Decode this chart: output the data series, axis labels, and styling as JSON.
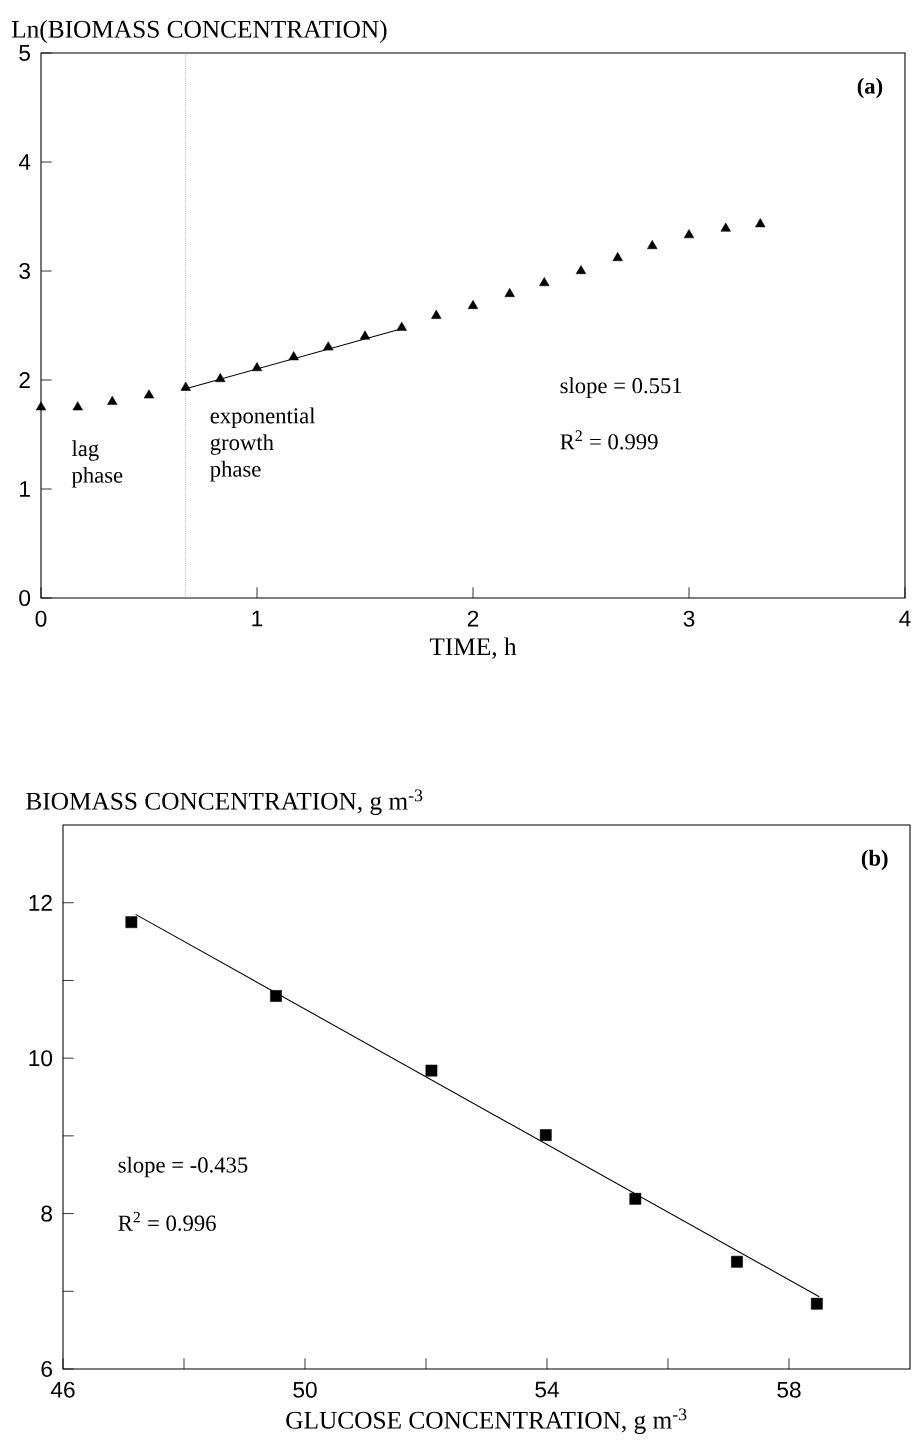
{
  "chart_data": [
    {
      "type": "scatter",
      "xlabel": "TIME, h",
      "ylabel": "Ln(BIOMASS CONCENTRATION)",
      "xlim": [
        0,
        4
      ],
      "ylim": [
        0,
        5
      ],
      "xticks": [
        0,
        1,
        2,
        3,
        4
      ],
      "yticks": [
        0,
        1,
        2,
        3,
        4,
        5
      ],
      "marker": "triangle",
      "series": [
        {
          "color": "#000000",
          "x": [
            0,
            0.17,
            0.33,
            0.5,
            0.67,
            0.83,
            1.0,
            1.17,
            1.33,
            1.5,
            1.67,
            1.83,
            2.0,
            2.17,
            2.33,
            2.5,
            2.67,
            2.83,
            3.0,
            3.17,
            3.33
          ],
          "values": [
            1.75,
            1.75,
            1.8,
            1.86,
            1.93,
            2.01,
            2.11,
            2.21,
            2.3,
            2.4,
            2.48,
            2.59,
            2.68,
            2.79,
            2.89,
            3.0,
            3.12,
            3.23,
            3.33,
            3.39,
            3.43
          ]
        },
        {
          "type": "line",
          "color": "#000000",
          "marker": "none",
          "x": [
            0.67,
            1.67
          ],
          "values": [
            1.92,
            2.47
          ]
        }
      ],
      "ref_lines": [
        {
          "axis": "x",
          "value": 0.67,
          "line_style": "dotted"
        }
      ],
      "annotations": [
        "(a)",
        "lag phase",
        "exponential growth phase",
        "slope = 0.551",
        "R$^{2}$ = 0.999"
      ]
    },
    {
      "type": "scatter",
      "xlabel": "GLUCOSE CONCENTRATION, g m$^{-3}$",
      "ylabel": "BIOMASS CONCENTRATION, g m$^{-3}$",
      "xlim": [
        46,
        60
      ],
      "ylim": [
        6,
        13
      ],
      "xticks": [
        46,
        {
          "value": 48,
          "label": null
        },
        50,
        {
          "value": 52,
          "label": null
        },
        54,
        {
          "value": 56,
          "label": null
        },
        58
      ],
      "yticks": [
        6,
        {
          "value": 7,
          "label": null
        },
        8,
        {
          "value": 9,
          "label": null
        },
        10,
        {
          "value": 11,
          "label": null
        },
        12
      ],
      "marker": "square",
      "series": [
        {
          "color": "#000000",
          "x": [
            47.13,
            49.52,
            52.09,
            53.98,
            55.46,
            57.14,
            58.46
          ],
          "values": [
            11.75,
            10.8,
            9.84,
            9.01,
            8.19,
            7.38,
            6.84
          ]
        },
        {
          "type": "line",
          "color": "#000000",
          "marker": "none",
          "x": [
            47.2,
            58.5
          ],
          "values": [
            11.85,
            6.93
          ]
        }
      ],
      "annotations": [
        "(b)",
        "slope = -0.435",
        "R$^{2}$ = 0.996"
      ]
    }
  ]
}
